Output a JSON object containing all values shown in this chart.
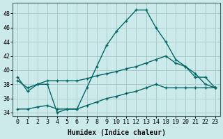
{
  "xlabel": "Humidex (Indice chaleur)",
  "bg_color": "#cceaea",
  "grid_color": "#aacccc",
  "line_color": "#006666",
  "ylim": [
    33.5,
    49.5
  ],
  "yticks": [
    34,
    36,
    38,
    40,
    42,
    44,
    46,
    48
  ],
  "xtick_labels": [
    "0",
    "1",
    "2",
    "3",
    "4",
    "5",
    "6",
    "7",
    "8",
    "9",
    "10",
    "11",
    "12",
    "13",
    "14",
    "18",
    "19",
    "20",
    "21",
    "22",
    "23"
  ],
  "curve1_y": [
    39.0,
    37.0,
    38.0,
    38.0,
    34.0,
    34.5,
    34.5,
    37.5,
    40.5,
    43.5,
    45.5,
    47.0,
    48.5,
    48.5,
    46.0,
    44.0,
    41.5,
    40.5,
    39.0,
    39.0,
    37.5
  ],
  "curve2_y": [
    38.5,
    37.5,
    38.0,
    38.5,
    38.5,
    38.5,
    38.5,
    38.8,
    39.2,
    39.5,
    39.8,
    40.2,
    40.5,
    41.0,
    41.5,
    42.0,
    41.0,
    40.5,
    39.5,
    38.0,
    37.5
  ],
  "curve3_y": [
    34.5,
    34.5,
    34.8,
    35.0,
    34.5,
    34.5,
    34.5,
    35.0,
    35.5,
    36.0,
    36.3,
    36.7,
    37.0,
    37.5,
    38.0,
    37.5,
    37.5,
    37.5,
    37.5,
    37.5,
    37.5
  ],
  "axis_fontsize": 7,
  "tick_fontsize": 6
}
